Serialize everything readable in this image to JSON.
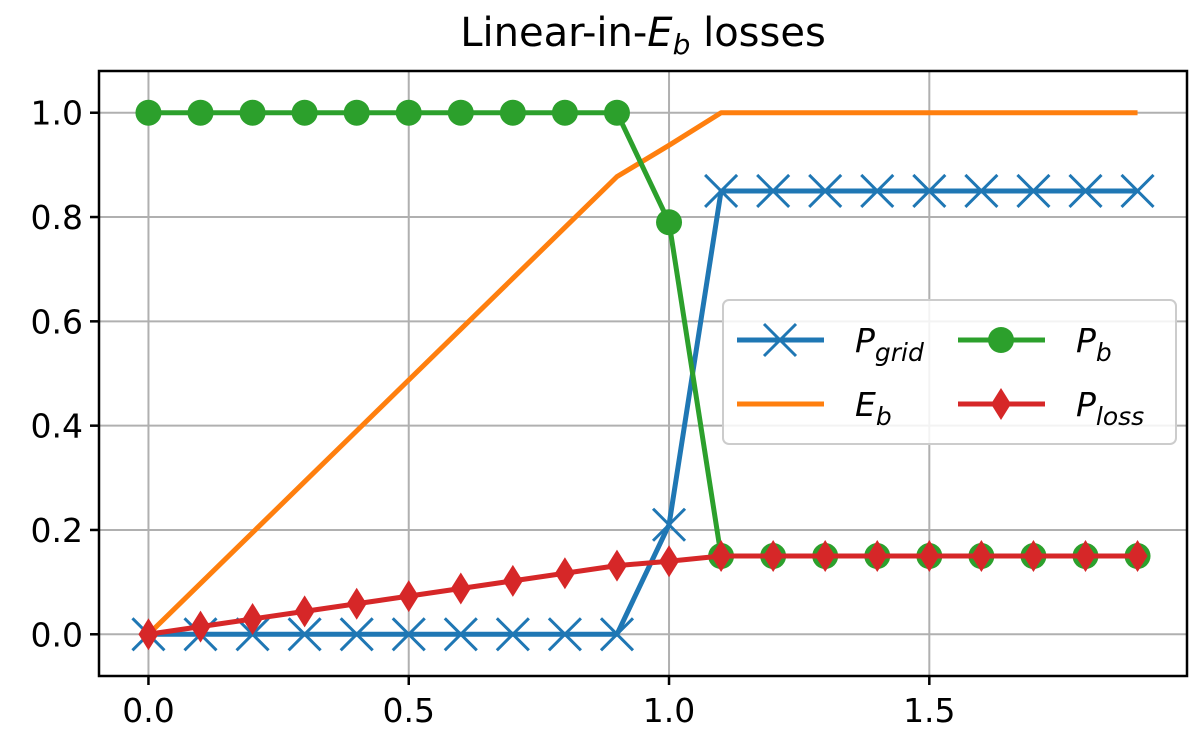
{
  "chart_data": {
    "type": "line",
    "title": {
      "main": "Linear-in-",
      "symbol": "E",
      "subscript": "b",
      "suffix": " losses"
    },
    "xlabel": "",
    "ylabel": "",
    "xlim": [
      -0.095,
      1.995
    ],
    "ylim": [
      -0.08,
      1.08
    ],
    "x_ticks": [
      0.0,
      0.5,
      1.0,
      1.5
    ],
    "x_tick_labels": [
      "0.0",
      "0.5",
      "1.0",
      "1.5"
    ],
    "y_ticks": [
      0.0,
      0.2,
      0.4,
      0.6,
      0.8,
      1.0
    ],
    "y_tick_labels": [
      "0.0",
      "0.2",
      "0.4",
      "0.6",
      "0.8",
      "1.0"
    ],
    "grid": true,
    "legend_position": "center-right",
    "x": [
      0.0,
      0.1,
      0.2,
      0.3,
      0.4,
      0.5,
      0.6,
      0.7,
      0.8,
      0.9,
      1.0,
      1.1,
      1.2,
      1.3,
      1.4,
      1.5,
      1.6,
      1.7,
      1.8,
      1.9
    ],
    "series": [
      {
        "key": "pgrid",
        "name": "P",
        "subscript": "grid",
        "color": "#1f77b4",
        "marker": "x",
        "values": [
          0,
          0,
          0,
          0,
          0,
          0,
          0,
          0,
          0,
          0,
          0.21,
          0.85,
          0.85,
          0.85,
          0.85,
          0.85,
          0.85,
          0.85,
          0.85,
          0.85
        ]
      },
      {
        "key": "eb",
        "name": "E",
        "subscript": "b",
        "color": "#ff7f0e",
        "marker": "none",
        "values": [
          0,
          0.0975,
          0.195,
          0.2925,
          0.39,
          0.4875,
          0.585,
          0.6825,
          0.78,
          0.8775,
          0.9375,
          1.0,
          1.0,
          1.0,
          1.0,
          1.0,
          1.0,
          1.0,
          1.0,
          1.0
        ]
      },
      {
        "key": "pb",
        "name": "P",
        "subscript": "b",
        "color": "#2ca02c",
        "marker": "circle",
        "values": [
          1.0,
          1.0,
          1.0,
          1.0,
          1.0,
          1.0,
          1.0,
          1.0,
          1.0,
          1.0,
          0.79,
          0.15,
          0.15,
          0.15,
          0.15,
          0.15,
          0.15,
          0.15,
          0.15,
          0.15
        ]
      },
      {
        "key": "ploss",
        "name": "P",
        "subscript": "loss",
        "color": "#d62728",
        "marker": "thin_diamond",
        "values": [
          0,
          0.0146,
          0.0293,
          0.0439,
          0.0585,
          0.0731,
          0.0878,
          0.1024,
          0.117,
          0.1316,
          0.14,
          0.15,
          0.15,
          0.15,
          0.15,
          0.15,
          0.15,
          0.15,
          0.15,
          0.15
        ]
      }
    ],
    "legend_order": [
      "pgrid",
      "pb",
      "eb",
      "ploss"
    ]
  }
}
